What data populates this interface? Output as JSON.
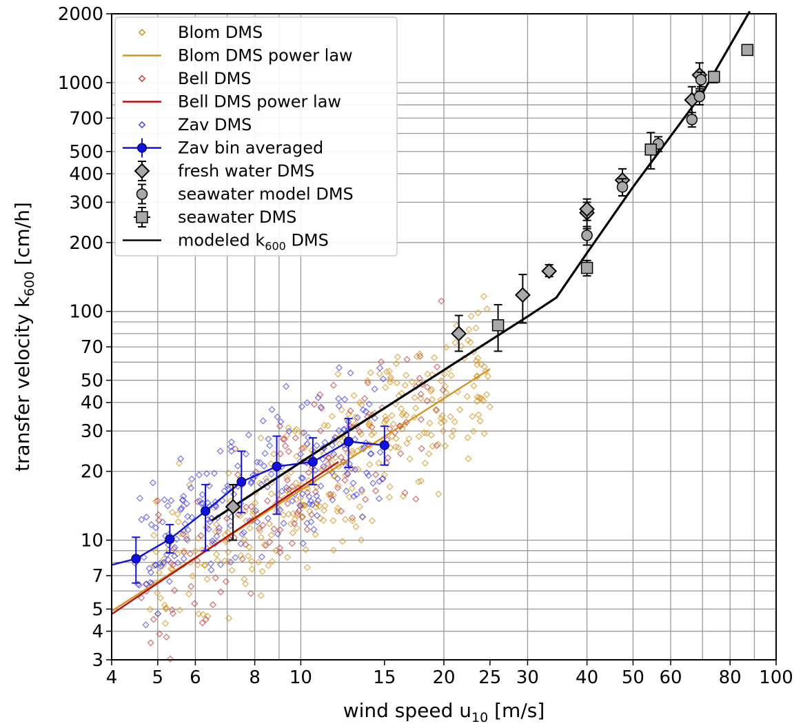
{
  "chart_data": {
    "type": "scatter",
    "title": "",
    "xlabel": "wind speed u",
    "xlabel_sub": "10",
    "xlabel_unit": " [m/s]",
    "ylabel": "transfer velocity k",
    "ylabel_sub": "600",
    "ylabel_unit": " [cm/h]",
    "xscale": "log",
    "yscale": "log",
    "xlim": [
      4,
      100
    ],
    "ylim": [
      3,
      2000
    ],
    "grid": true,
    "legend_position": "top-left",
    "x_ticks": [
      4,
      5,
      6,
      8,
      10,
      15,
      20,
      25,
      30,
      40,
      50,
      60,
      80,
      100
    ],
    "x_tick_labels": [
      "4",
      "5",
      "6",
      "8",
      "10",
      "15",
      "20",
      "25",
      "30",
      "40",
      "50",
      "60",
      "80",
      "100"
    ],
    "y_ticks": [
      3,
      4,
      5,
      7,
      10,
      20,
      30,
      40,
      50,
      70,
      100,
      200,
      300,
      400,
      500,
      700,
      1000,
      2000
    ],
    "y_tick_labels": [
      "3",
      "4",
      "5",
      "7",
      "10",
      "20",
      "30",
      "40",
      "50",
      "70",
      "100",
      "200",
      "300",
      "400",
      "500",
      "700",
      "1000",
      "2000"
    ],
    "legend": [
      {
        "label": "Blom DMS",
        "marker": "diamond-open",
        "color": "#d4921e"
      },
      {
        "label": "Blom DMS power law",
        "marker": "line",
        "color": "#d4921e"
      },
      {
        "label": "Bell DMS",
        "marker": "diamond-open",
        "color": "#c83c3c"
      },
      {
        "label": "Bell DMS power law",
        "marker": "line",
        "color": "#b01010"
      },
      {
        "label": "Zav DMS",
        "marker": "diamond-open",
        "color": "#4444ee"
      },
      {
        "label": "Zav bin averaged",
        "marker": "line-circle-err",
        "color": "#1010e0"
      },
      {
        "label": "fresh water DMS",
        "marker": "diamond-gray-err",
        "color": "#a8a8a8"
      },
      {
        "label": "seawater model DMS",
        "marker": "circle-gray-err",
        "color": "#a8a8a8"
      },
      {
        "label": "seawater DMS",
        "marker": "square-gray-err",
        "color": "#a8a8a8"
      },
      {
        "label": "modeled k",
        "label_sub": "600",
        "label_suffix": " DMS",
        "marker": "line",
        "color": "#000000"
      }
    ],
    "series": [
      {
        "name": "Blom DMS power law",
        "kind": "line",
        "color": "#d4921e",
        "x": [
          4,
          25
        ],
        "y": [
          4.9,
          56
        ]
      },
      {
        "name": "Bell DMS power law",
        "kind": "line",
        "color": "#b01010",
        "x": [
          4,
          12
        ],
        "y": [
          4.75,
          22
        ]
      },
      {
        "name": "Zav bin averaged",
        "kind": "line",
        "color": "#1010e0",
        "x": [
          4,
          4.5,
          5.3,
          6.3,
          7.5,
          8.9,
          10.6,
          12.6,
          15
        ],
        "y": [
          7.8,
          8.3,
          10.1,
          13.4,
          18,
          21,
          22,
          27,
          26
        ]
      },
      {
        "name": "Zav bin averaged points",
        "kind": "points-err",
        "color": "#1010e0",
        "x": [
          4.5,
          5.3,
          6.3,
          7.5,
          8.9,
          10.6,
          12.6,
          15
        ],
        "y": [
          8.3,
          10.1,
          13.4,
          18,
          21,
          22,
          27,
          26
        ],
        "ylow": [
          6.5,
          8.8,
          9,
          13.2,
          13,
          17.5,
          20.8,
          21.3
        ],
        "yhigh": [
          10.3,
          11.7,
          17.5,
          24.5,
          28.5,
          28,
          34,
          31.5
        ]
      },
      {
        "name": "modeled k600 DMS",
        "kind": "line",
        "color": "#000000",
        "x": [
          6.5,
          12.6,
          30,
          34.5,
          40,
          50,
          70,
          88
        ],
        "y": [
          12.2,
          30,
          95,
          115,
          180,
          350,
          900,
          2050
        ]
      },
      {
        "name": "fresh water DMS",
        "kind": "diamond-err",
        "color": "#a8a8a8",
        "x": [
          7.2,
          21.5,
          29.3,
          33.3,
          40,
          40,
          47.5,
          66.5,
          69
        ],
        "y": [
          14,
          80,
          118,
          150,
          270,
          280,
          375,
          840,
          1080
        ],
        "ylow": [
          10,
          67,
          89,
          142,
          230,
          250,
          320,
          720,
          920
        ],
        "yhigh": [
          17.5,
          96,
          145,
          160,
          300,
          310,
          420,
          960,
          1220
        ]
      },
      {
        "name": "seawater model DMS",
        "kind": "circle-err",
        "color": "#a8a8a8",
        "x": [
          40,
          47.5,
          56.5,
          66.5,
          69,
          69.5
        ],
        "y": [
          215,
          350,
          540,
          690,
          870,
          1030
        ],
        "ylow": [
          195,
          320,
          500,
          640,
          800,
          960
        ],
        "yhigh": [
          235,
          380,
          580,
          740,
          940,
          1110
        ]
      },
      {
        "name": "seawater DMS",
        "kind": "square-err",
        "color": "#a8a8a8",
        "x": [
          26,
          40,
          54.5,
          74,
          87
        ],
        "y": [
          87,
          155,
          510,
          1060,
          1390
        ],
        "ylow": [
          67,
          143,
          420,
          1000,
          1320
        ],
        "yhigh": [
          107,
          167,
          605,
          1120,
          1460
        ]
      }
    ],
    "scatter_clouds": [
      {
        "name": "Blom DMS",
        "color": "#d4921e",
        "x_range": [
          4,
          25
        ],
        "law": [
          4.9,
          56
        ],
        "count": 360,
        "spread": 0.32,
        "seed": 11
      },
      {
        "name": "Bell DMS",
        "color": "#c83c3c",
        "x_range": [
          4,
          20
        ],
        "law": [
          4.75,
          46
        ],
        "count": 150,
        "spread": 0.36,
        "seed": 23
      },
      {
        "name": "Zav DMS",
        "color": "#4444ee",
        "x_range": [
          4,
          15
        ],
        "law": [
          7.8,
          29
        ],
        "count": 220,
        "spread": 0.3,
        "seed": 37
      }
    ]
  }
}
